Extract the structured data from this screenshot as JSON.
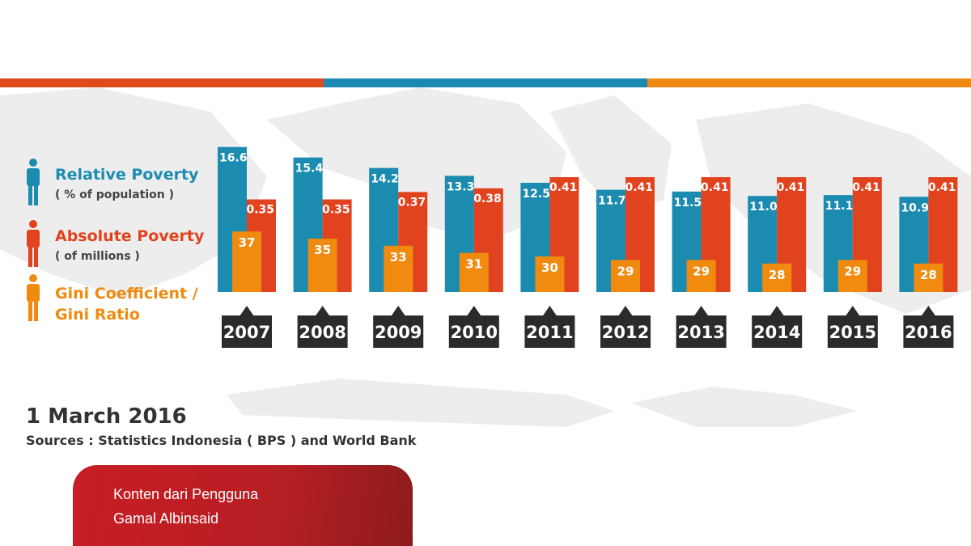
{
  "colors": {
    "relative": "#1b8bb0",
    "absolute": "#e2431f",
    "gini": "#f08b10",
    "year_box": "#2b2b2b",
    "topbar": [
      "#dd4a1c",
      "#1a8ab0",
      "#ee8a14"
    ]
  },
  "legend": [
    {
      "label": "Relative Poverty",
      "sub": "( % of population )",
      "color": "#1b8bb0",
      "icon": "person-icon"
    },
    {
      "label": "Absolute Poverty",
      "sub": "( of millions )",
      "color": "#e2431f",
      "icon": "person-icon"
    },
    {
      "label": "Gini Coefficient /",
      "sub": "Gini Ratio",
      "color": "#f08b10",
      "icon": "person-icon"
    }
  ],
  "chart_data": {
    "type": "bar",
    "categories": [
      "2007",
      "2008",
      "2009",
      "2010",
      "2011",
      "2012",
      "2013",
      "2014",
      "2015",
      "2016"
    ],
    "series": [
      {
        "name": "Relative Poverty",
        "values": [
          16.6,
          15.4,
          14.2,
          13.3,
          12.5,
          11.7,
          11.5,
          11.0,
          11.1,
          10.9
        ],
        "labels": [
          "16.6",
          "15.4",
          "14.2",
          "13.3",
          "12.5",
          "11.7",
          "11.5",
          "11.0",
          "11.1",
          "10.9"
        ]
      },
      {
        "name": "Absolute Poverty",
        "values": [
          0.35,
          0.35,
          0.37,
          0.38,
          0.41,
          0.41,
          0.41,
          0.41,
          0.41,
          0.41
        ],
        "labels": [
          "0.35",
          "0.35",
          "0.37",
          "0.38",
          "0.41",
          "0.41",
          "0.41",
          "0.41",
          "0.41",
          "0.41"
        ]
      },
      {
        "name": "Gini Coefficient / Gini Ratio",
        "values": [
          37,
          35,
          33,
          31,
          30,
          29,
          29,
          28,
          29,
          28
        ],
        "labels": [
          "37",
          "35",
          "33",
          "31",
          "30",
          "29",
          "29",
          "28",
          "29",
          "28"
        ]
      }
    ]
  },
  "footer": {
    "date": "1 March 2016",
    "sources": "Sources :  Statistics Indonesia ( BPS ) and World Bank"
  },
  "badge": {
    "line1": "Konten dari Pengguna",
    "line2": "Gamal Albinsaid"
  }
}
